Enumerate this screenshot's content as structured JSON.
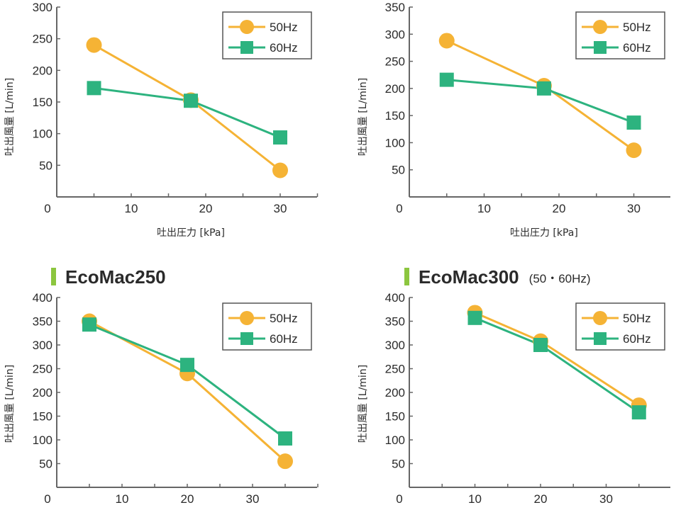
{
  "colors": {
    "series_50hz": "#f5b335",
    "series_60hz": "#2db37f",
    "axis": "#666666",
    "title_marker": "#8cc63f",
    "legend_border": "#555555"
  },
  "chart_data": [
    {
      "type": "line",
      "title": "",
      "subtitle": "",
      "xlabel": "吐出圧力 [kPa]",
      "ylabel": "吐出風量 [L/min]",
      "xlim": [
        0,
        35
      ],
      "ylim": [
        0,
        300
      ],
      "xticks": [
        0,
        10,
        20,
        30
      ],
      "yticks": [
        50,
        100,
        150,
        200,
        250,
        300
      ],
      "grid": false,
      "legend": "top-right",
      "series": [
        {
          "name": "50Hz",
          "marker": "circle",
          "x": [
            5,
            18,
            30
          ],
          "y": [
            240,
            153,
            42
          ]
        },
        {
          "name": "60Hz",
          "marker": "square",
          "x": [
            5,
            18,
            30
          ],
          "y": [
            172,
            152,
            94
          ]
        }
      ]
    },
    {
      "type": "line",
      "title": "",
      "subtitle": "",
      "xlabel": "吐出圧力 [kPa]",
      "ylabel": "吐出風量 [L/min]",
      "xlim": [
        0,
        35
      ],
      "ylim": [
        0,
        350
      ],
      "xticks": [
        0,
        10,
        20,
        30
      ],
      "yticks": [
        50,
        100,
        150,
        200,
        250,
        300,
        350
      ],
      "grid": false,
      "legend": "top-right",
      "series": [
        {
          "name": "50Hz",
          "marker": "circle",
          "x": [
            5,
            18,
            30
          ],
          "y": [
            288,
            205,
            86
          ]
        },
        {
          "name": "60Hz",
          "marker": "square",
          "x": [
            5,
            18,
            30
          ],
          "y": [
            216,
            200,
            137
          ]
        }
      ]
    },
    {
      "type": "line",
      "title": "EcoMac250",
      "subtitle": "",
      "xlabel": "",
      "ylabel": "吐出風量 [L/min]",
      "xlim": [
        0,
        40
      ],
      "ylim": [
        0,
        400
      ],
      "xticks": [
        0,
        10,
        20,
        30
      ],
      "yticks": [
        50,
        100,
        150,
        200,
        250,
        300,
        350,
        400
      ],
      "grid": false,
      "legend": "top-right",
      "series": [
        {
          "name": "50Hz",
          "marker": "circle",
          "x": [
            5,
            20,
            35
          ],
          "y": [
            350,
            240,
            55
          ]
        },
        {
          "name": "60Hz",
          "marker": "square",
          "x": [
            5,
            20,
            35
          ],
          "y": [
            343,
            258,
            103
          ]
        }
      ]
    },
    {
      "type": "line",
      "title": "EcoMac300",
      "subtitle": "(50・60Hz)",
      "xlabel": "",
      "ylabel": "吐出風量 [L/min]",
      "xlim": [
        0,
        40
      ],
      "ylim": [
        0,
        400
      ],
      "xticks": [
        0,
        10,
        20,
        30
      ],
      "yticks": [
        50,
        100,
        150,
        200,
        250,
        300,
        350,
        400
      ],
      "grid": false,
      "legend": "top-right",
      "series": [
        {
          "name": "50Hz",
          "marker": "circle",
          "x": [
            10,
            20,
            35
          ],
          "y": [
            368,
            308,
            173
          ]
        },
        {
          "name": "60Hz",
          "marker": "square",
          "x": [
            10,
            20,
            35
          ],
          "y": [
            357,
            300,
            158
          ]
        }
      ]
    }
  ]
}
